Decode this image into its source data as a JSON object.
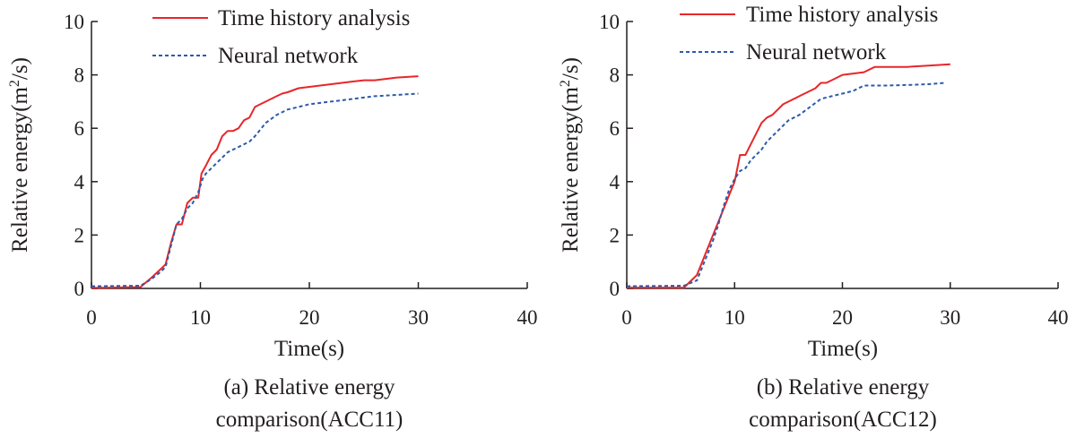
{
  "chart_data": [
    {
      "type": "line",
      "caption_lines": [
        "(a) Relative energy",
        "comparison(ACC11)"
      ],
      "xlabel": "Time(s)",
      "ylabel_parts": [
        "Relative energy(m",
        "2",
        "/s)"
      ],
      "xlim": [
        0,
        40
      ],
      "ylim": [
        0,
        10
      ],
      "xticks": [
        0,
        10,
        20,
        30,
        40
      ],
      "yticks": [
        0,
        2,
        4,
        6,
        8,
        10
      ],
      "grid": false,
      "legend": "top-center",
      "series": [
        {
          "name": "Time history analysis",
          "style": "solid",
          "color": "#e8262a",
          "x": [
            0,
            4.5,
            5.5,
            6.3,
            6.8,
            7.3,
            7.8,
            8.3,
            8.8,
            9.3,
            9.8,
            10.1,
            10.5,
            11,
            11.5,
            12,
            12.5,
            13,
            13.5,
            14,
            14.5,
            15,
            15.5,
            16,
            16.5,
            17,
            17.5,
            18,
            19,
            20,
            21,
            22,
            23,
            24,
            25,
            26,
            27,
            28,
            30
          ],
          "y": [
            0.02,
            0.05,
            0.4,
            0.7,
            0.9,
            1.7,
            2.4,
            2.4,
            3.2,
            3.4,
            3.4,
            4.3,
            4.6,
            5.0,
            5.2,
            5.7,
            5.9,
            5.9,
            6.0,
            6.3,
            6.4,
            6.8,
            6.9,
            7.0,
            7.1,
            7.2,
            7.3,
            7.35,
            7.5,
            7.55,
            7.6,
            7.65,
            7.7,
            7.75,
            7.8,
            7.8,
            7.85,
            7.9,
            7.95
          ]
        },
        {
          "name": "Neural network",
          "style": "dashed",
          "color": "#2e5aa8",
          "x": [
            0,
            4.5,
            5.5,
            6.3,
            6.8,
            7.3,
            7.8,
            8.3,
            8.8,
            9.3,
            9.8,
            10.2,
            10.5,
            11,
            11.5,
            12,
            12.5,
            13,
            13.5,
            14,
            14.5,
            15,
            16,
            17,
            18,
            19,
            20,
            22,
            24,
            26,
            28,
            30
          ],
          "y": [
            0.08,
            0.1,
            0.35,
            0.6,
            0.8,
            1.6,
            2.4,
            2.6,
            3.0,
            3.2,
            3.6,
            4.1,
            4.3,
            4.5,
            4.7,
            4.9,
            5.1,
            5.2,
            5.3,
            5.4,
            5.5,
            5.7,
            6.2,
            6.5,
            6.7,
            6.8,
            6.9,
            7.0,
            7.1,
            7.2,
            7.25,
            7.3
          ]
        }
      ]
    },
    {
      "type": "line",
      "caption_lines": [
        "(b) Relative energy",
        "comparison(ACC12)"
      ],
      "xlabel": "Time(s)",
      "ylabel_parts": [
        "Relative energy(m",
        "2",
        "/s)"
      ],
      "xlim": [
        0,
        40
      ],
      "ylim": [
        0,
        10
      ],
      "xticks": [
        0,
        10,
        20,
        30,
        40
      ],
      "yticks": [
        0,
        2,
        4,
        6,
        8,
        10
      ],
      "grid": false,
      "legend": "top-center",
      "series": [
        {
          "name": "Time history analysis",
          "style": "solid",
          "color": "#e8262a",
          "x": [
            0,
            5.3,
            6.5,
            7,
            7.5,
            8,
            8.5,
            9,
            9.5,
            10,
            10.5,
            11,
            11.5,
            12,
            12.5,
            13,
            13.5,
            14,
            14.5,
            15,
            16,
            17,
            17.5,
            18,
            18.5,
            19,
            19.5,
            20,
            21,
            22,
            23,
            24,
            25,
            26,
            28,
            30
          ],
          "y": [
            0.03,
            0.03,
            0.5,
            1.0,
            1.5,
            2.0,
            2.5,
            3.0,
            3.5,
            4.0,
            5.0,
            5.0,
            5.4,
            5.8,
            6.2,
            6.4,
            6.5,
            6.7,
            6.9,
            7.0,
            7.2,
            7.4,
            7.5,
            7.7,
            7.7,
            7.8,
            7.9,
            8.0,
            8.05,
            8.1,
            8.3,
            8.3,
            8.3,
            8.3,
            8.35,
            8.4
          ]
        },
        {
          "name": "Neural network",
          "style": "dashed",
          "color": "#2e5aa8",
          "x": [
            0,
            5.3,
            6.5,
            7,
            7.5,
            8,
            8.5,
            9,
            9.5,
            10,
            10.5,
            11,
            11.5,
            12,
            12.5,
            13,
            13.5,
            14,
            14.5,
            15,
            16,
            17,
            18,
            19,
            20,
            21,
            22,
            24,
            26,
            28,
            29.5
          ],
          "y": [
            0.08,
            0.1,
            0.3,
            0.8,
            1.3,
            1.8,
            2.4,
            3.1,
            3.7,
            4.1,
            4.4,
            4.5,
            4.8,
            5.0,
            5.2,
            5.5,
            5.7,
            5.9,
            6.1,
            6.3,
            6.5,
            6.8,
            7.1,
            7.2,
            7.3,
            7.4,
            7.6,
            7.6,
            7.62,
            7.65,
            7.7
          ]
        }
      ]
    }
  ]
}
